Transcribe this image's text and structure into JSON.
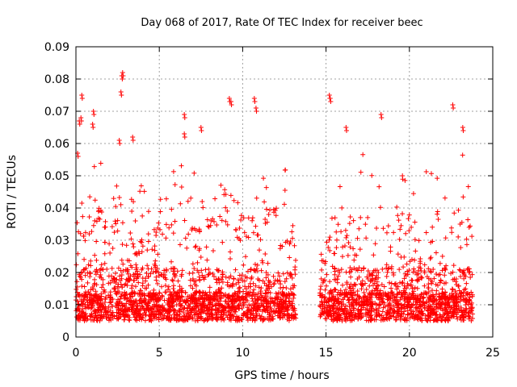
{
  "chart_data": {
    "type": "scatter",
    "title": "Day 068 of 2017, Rate Of TEC Index for receiver beec",
    "xlabel": "GPS time / hours",
    "ylabel": "ROTI / TECUs",
    "xlim": [
      0,
      25
    ],
    "ylim": [
      0,
      0.09
    ],
    "xticks": [
      "0",
      "5",
      "10",
      "15",
      "20",
      "25"
    ],
    "yticks": [
      "0",
      "0.01",
      "0.02",
      "0.03",
      "0.04",
      "0.05",
      "0.06",
      "0.07",
      "0.08",
      "0.09"
    ],
    "grid": true,
    "marker": "+",
    "color": "#ff0000",
    "data_gaps_hours": [
      [
        13.2,
        14.6
      ]
    ],
    "x_data_range": [
      0,
      23.8
    ],
    "typical_band": [
      0.005,
      0.02
    ],
    "notable_points": [
      {
        "x": 0.1,
        "y": 0.057
      },
      {
        "x": 0.2,
        "y": 0.067
      },
      {
        "x": 0.3,
        "y": 0.068
      },
      {
        "x": 0.35,
        "y": 0.075
      },
      {
        "x": 1.0,
        "y": 0.066
      },
      {
        "x": 1.05,
        "y": 0.07
      },
      {
        "x": 2.6,
        "y": 0.061
      },
      {
        "x": 2.7,
        "y": 0.076
      },
      {
        "x": 2.75,
        "y": 0.081
      },
      {
        "x": 2.8,
        "y": 0.082
      },
      {
        "x": 3.4,
        "y": 0.062
      },
      {
        "x": 6.5,
        "y": 0.069
      },
      {
        "x": 6.5,
        "y": 0.063
      },
      {
        "x": 7.5,
        "y": 0.065
      },
      {
        "x": 9.2,
        "y": 0.074
      },
      {
        "x": 9.3,
        "y": 0.073
      },
      {
        "x": 10.7,
        "y": 0.074
      },
      {
        "x": 10.8,
        "y": 0.071
      },
      {
        "x": 15.2,
        "y": 0.075
      },
      {
        "x": 15.25,
        "y": 0.074
      },
      {
        "x": 16.2,
        "y": 0.065
      },
      {
        "x": 18.3,
        "y": 0.069
      },
      {
        "x": 22.6,
        "y": 0.072
      },
      {
        "x": 23.2,
        "y": 0.065
      }
    ]
  }
}
